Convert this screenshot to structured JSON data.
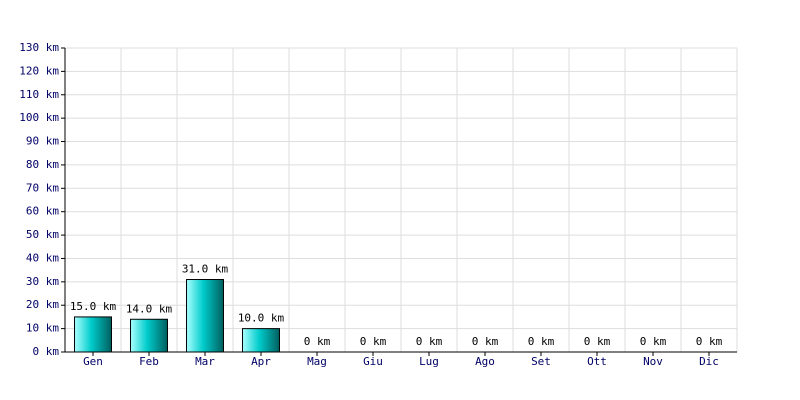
{
  "chart_data": {
    "type": "bar",
    "categories": [
      "Gen",
      "Feb",
      "Mar",
      "Apr",
      "Mag",
      "Giu",
      "Lug",
      "Ago",
      "Set",
      "Ott",
      "Nov",
      "Dic"
    ],
    "values": [
      15,
      14,
      31,
      10,
      0,
      0,
      0,
      0,
      0,
      0,
      0,
      0
    ],
    "value_labels": [
      "15.0 km",
      "14.0 km",
      "31.0 km",
      "10.0 km",
      "0 km",
      "0 km",
      "0 km",
      "0 km",
      "0 km",
      "0 km",
      "0 km",
      "0 km"
    ],
    "color": "#00cccc",
    "ylim": [
      0,
      130
    ],
    "yticks": [
      {
        "value": 0,
        "label": "0 km"
      },
      {
        "value": 10,
        "label": "10 km"
      },
      {
        "value": 20,
        "label": "20 km"
      },
      {
        "value": 30,
        "label": "30 km"
      },
      {
        "value": 40,
        "label": "40 km"
      },
      {
        "value": 50,
        "label": "50 km"
      },
      {
        "value": 60,
        "label": "60 km"
      },
      {
        "value": 70,
        "label": "70 km"
      },
      {
        "value": 80,
        "label": "80 km"
      },
      {
        "value": 90,
        "label": "90 km"
      },
      {
        "value": 100,
        "label": "100 km"
      },
      {
        "value": 110,
        "label": "110 km"
      },
      {
        "value": 120,
        "label": "120 km"
      },
      {
        "value": 130,
        "label": "130 km"
      }
    ],
    "grid": true
  }
}
